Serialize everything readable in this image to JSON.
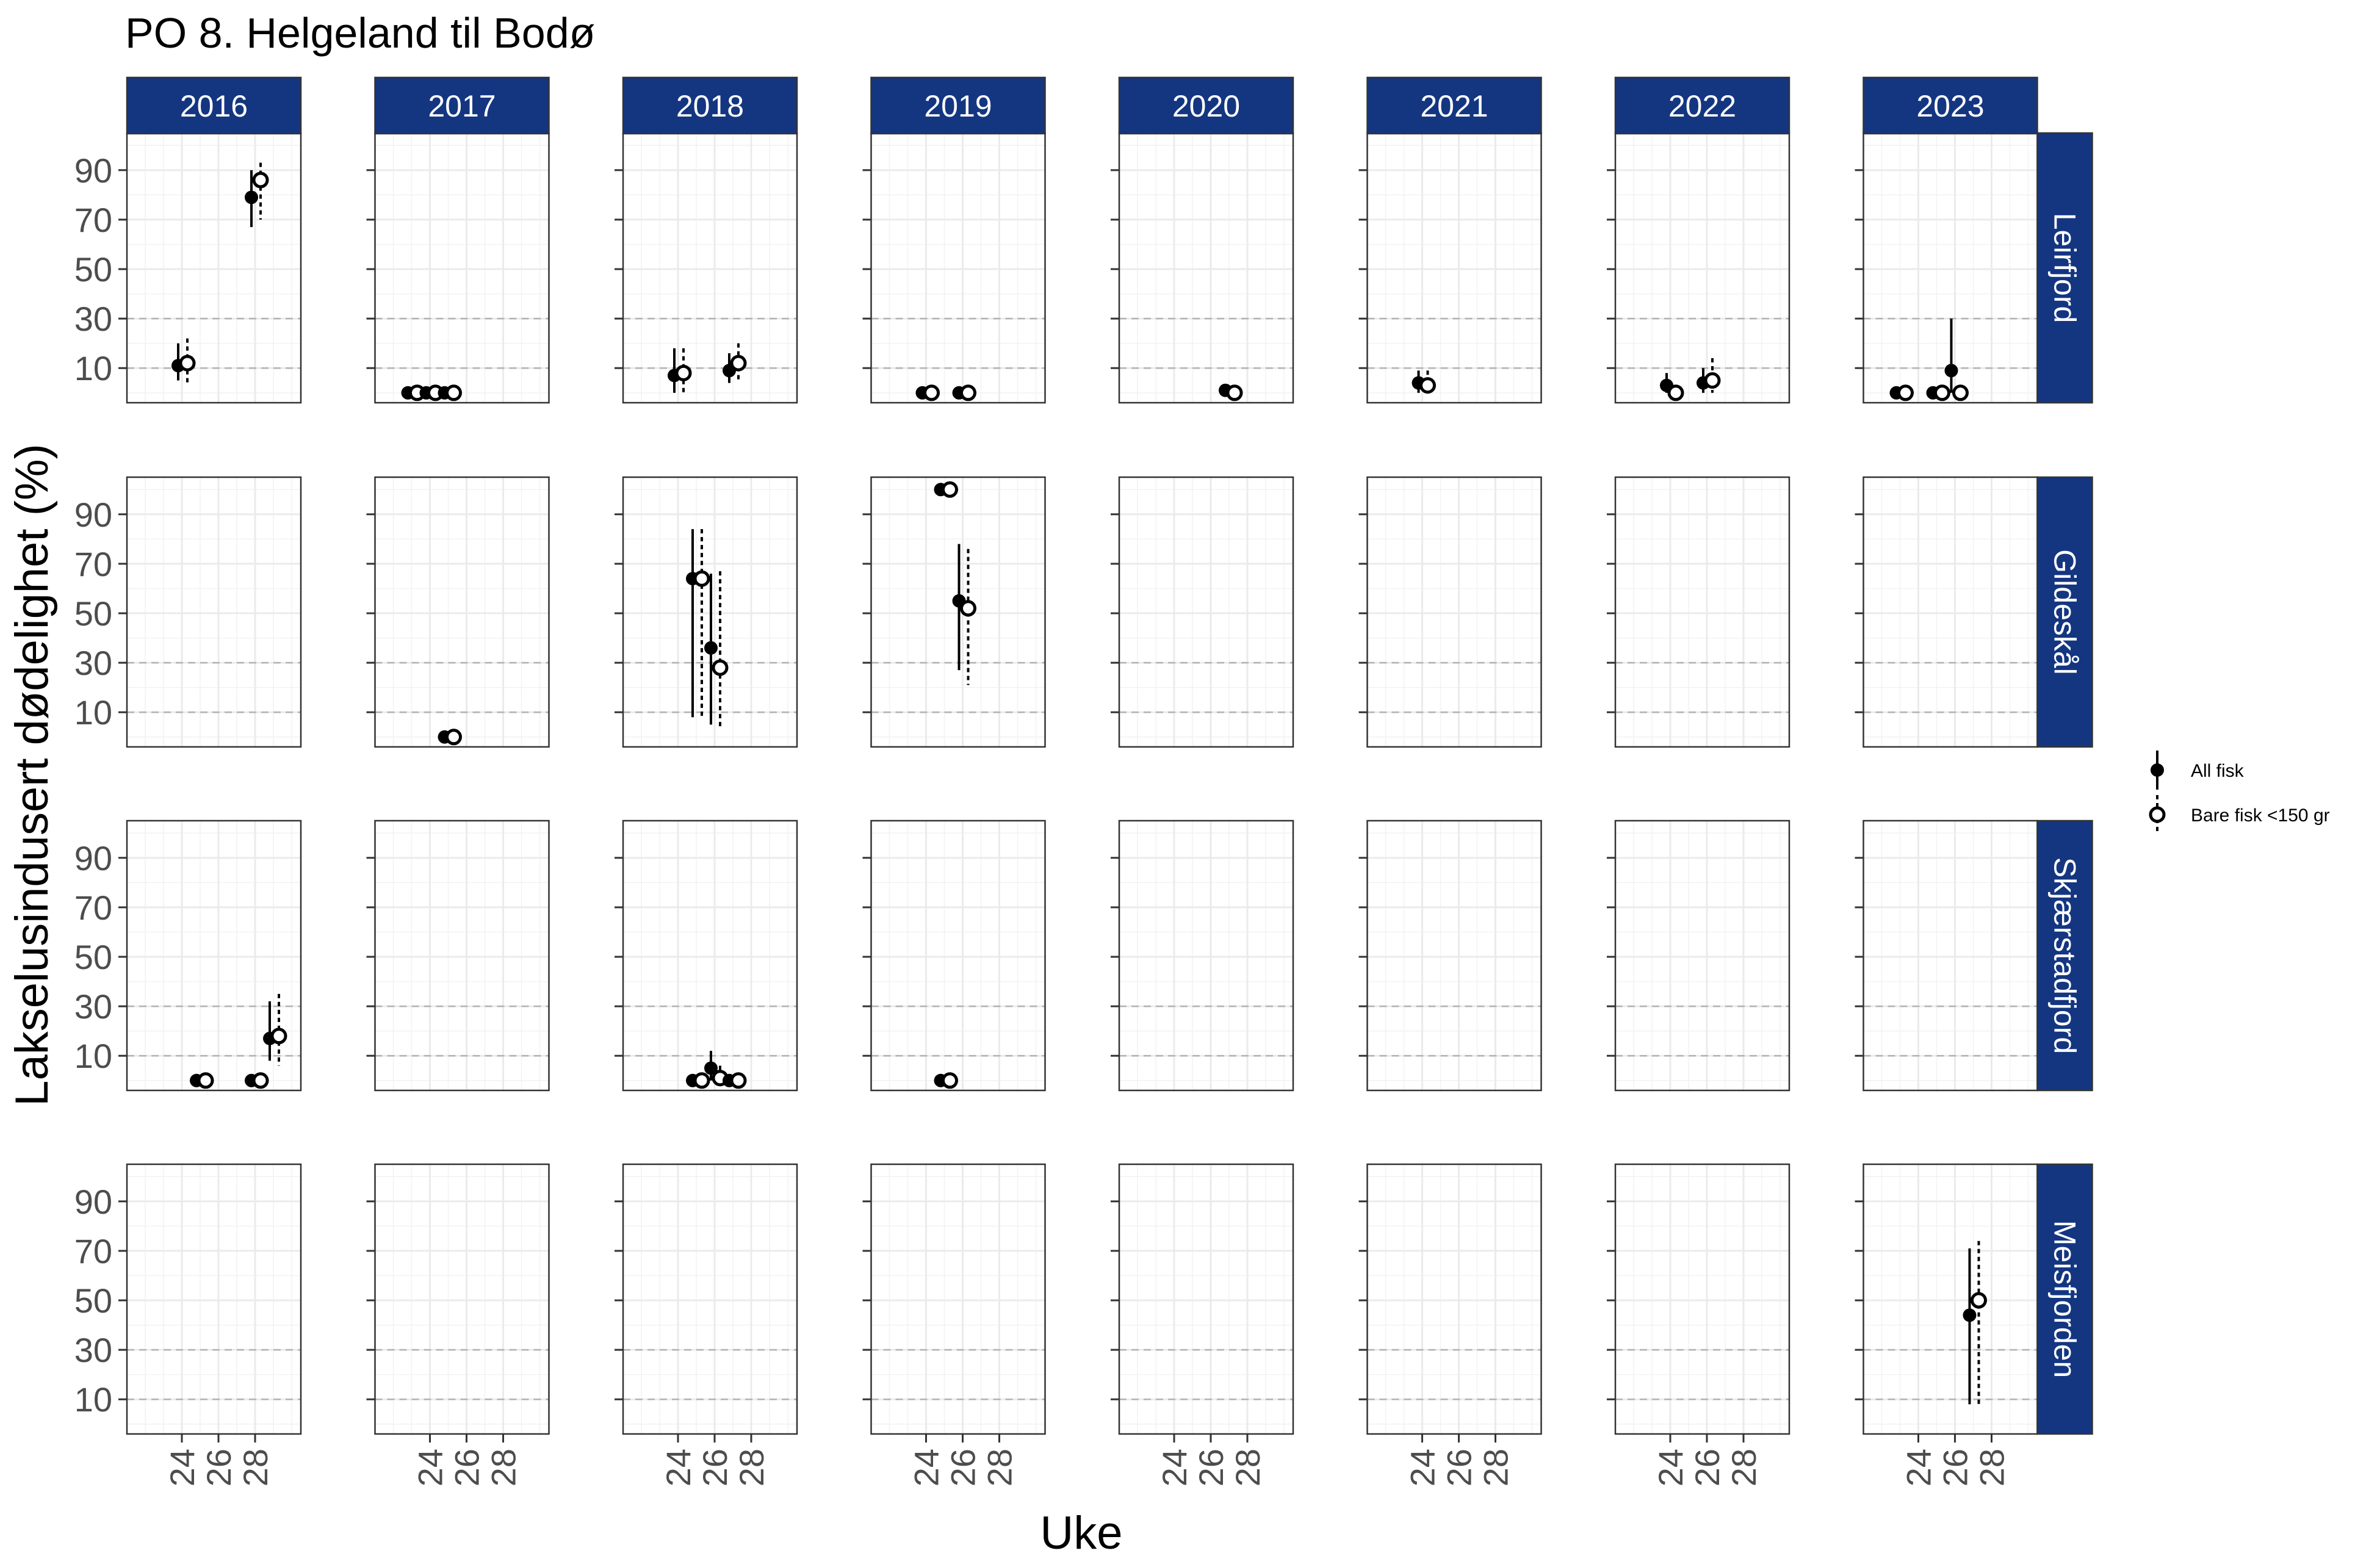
{
  "chart_data": {
    "type": "scatter",
    "title": "PO 8. Helgeland til Bodø",
    "xlabel": "Uke",
    "ylabel": "Lakselusindusert dødelighet (%)",
    "x_ticks": [
      "24",
      "26",
      "28"
    ],
    "y_ticks": [
      "10",
      "30",
      "50",
      "70",
      "90"
    ],
    "xlim": [
      21,
      30.5
    ],
    "ylim": [
      -4,
      105
    ],
    "reference_lines": [
      10,
      30
    ],
    "grid": true,
    "legend_position": "right",
    "colors": {
      "strip": "#143681",
      "strip_text": "#ffffff",
      "points": "#000000",
      "reference_line": "#b3b3b3"
    },
    "columns": [
      "2016",
      "2017",
      "2018",
      "2019",
      "2020",
      "2021",
      "2022",
      "2023"
    ],
    "rows": [
      "Leirfjord",
      "Gildeskål",
      "Skjærstadfjord",
      "Meisfjorden"
    ],
    "series": [
      {
        "name": "All fisk",
        "marker": "filled-circle",
        "errorbar": "solid"
      },
      {
        "name": "Bare fisk <150 gr",
        "marker": "open-circle",
        "errorbar": "dotted"
      }
    ],
    "points": [
      {
        "year": "2016",
        "loc": "Leirfjord",
        "series": "All fisk",
        "x": 23.8,
        "y": 11,
        "lo": 5,
        "hi": 20
      },
      {
        "year": "2016",
        "loc": "Leirfjord",
        "series": "Bare fisk <150 gr",
        "x": 24.3,
        "y": 12,
        "lo": 3,
        "hi": 22
      },
      {
        "year": "2016",
        "loc": "Leirfjord",
        "series": "All fisk",
        "x": 27.8,
        "y": 79,
        "lo": 67,
        "hi": 90
      },
      {
        "year": "2016",
        "loc": "Leirfjord",
        "series": "Bare fisk <150 gr",
        "x": 28.3,
        "y": 86,
        "lo": 70,
        "hi": 93
      },
      {
        "year": "2017",
        "loc": "Leirfjord",
        "series": "All fisk",
        "x": 22.8,
        "y": 0
      },
      {
        "year": "2017",
        "loc": "Leirfjord",
        "series": "Bare fisk <150 gr",
        "x": 23.3,
        "y": 0
      },
      {
        "year": "2017",
        "loc": "Leirfjord",
        "series": "All fisk",
        "x": 23.8,
        "y": 0
      },
      {
        "year": "2017",
        "loc": "Leirfjord",
        "series": "Bare fisk <150 gr",
        "x": 24.3,
        "y": 0
      },
      {
        "year": "2017",
        "loc": "Leirfjord",
        "series": "All fisk",
        "x": 24.8,
        "y": 0
      },
      {
        "year": "2017",
        "loc": "Leirfjord",
        "series": "Bare fisk <150 gr",
        "x": 25.3,
        "y": 0
      },
      {
        "year": "2018",
        "loc": "Leirfjord",
        "series": "All fisk",
        "x": 23.8,
        "y": 7,
        "lo": 0,
        "hi": 18
      },
      {
        "year": "2018",
        "loc": "Leirfjord",
        "series": "Bare fisk <150 gr",
        "x": 24.3,
        "y": 8,
        "lo": 0,
        "hi": 18
      },
      {
        "year": "2018",
        "loc": "Leirfjord",
        "series": "All fisk",
        "x": 26.8,
        "y": 9,
        "lo": 4,
        "hi": 16
      },
      {
        "year": "2018",
        "loc": "Leirfjord",
        "series": "Bare fisk <150 gr",
        "x": 27.3,
        "y": 12,
        "lo": 5,
        "hi": 20
      },
      {
        "year": "2019",
        "loc": "Leirfjord",
        "series": "All fisk",
        "x": 23.8,
        "y": 0
      },
      {
        "year": "2019",
        "loc": "Leirfjord",
        "series": "Bare fisk <150 gr",
        "x": 24.3,
        "y": 0
      },
      {
        "year": "2019",
        "loc": "Leirfjord",
        "series": "All fisk",
        "x": 25.8,
        "y": 0
      },
      {
        "year": "2019",
        "loc": "Leirfjord",
        "series": "Bare fisk <150 gr",
        "x": 26.3,
        "y": 0
      },
      {
        "year": "2020",
        "loc": "Leirfjord",
        "series": "All fisk",
        "x": 26.8,
        "y": 1
      },
      {
        "year": "2020",
        "loc": "Leirfjord",
        "series": "Bare fisk <150 gr",
        "x": 27.3,
        "y": 0
      },
      {
        "year": "2021",
        "loc": "Leirfjord",
        "series": "All fisk",
        "x": 23.8,
        "y": 4,
        "lo": 0,
        "hi": 9
      },
      {
        "year": "2021",
        "loc": "Leirfjord",
        "series": "Bare fisk <150 gr",
        "x": 24.3,
        "y": 3,
        "lo": 0,
        "hi": 9
      },
      {
        "year": "2022",
        "loc": "Leirfjord",
        "series": "All fisk",
        "x": 23.8,
        "y": 3,
        "lo": 0,
        "hi": 8
      },
      {
        "year": "2022",
        "loc": "Leirfjord",
        "series": "Bare fisk <150 gr",
        "x": 24.3,
        "y": 0
      },
      {
        "year": "2022",
        "loc": "Leirfjord",
        "series": "All fisk",
        "x": 25.8,
        "y": 4,
        "lo": 0,
        "hi": 10
      },
      {
        "year": "2022",
        "loc": "Leirfjord",
        "series": "Bare fisk <150 gr",
        "x": 26.3,
        "y": 5,
        "lo": 0,
        "hi": 14
      },
      {
        "year": "2023",
        "loc": "Leirfjord",
        "series": "All fisk",
        "x": 22.8,
        "y": 0
      },
      {
        "year": "2023",
        "loc": "Leirfjord",
        "series": "Bare fisk <150 gr",
        "x": 23.3,
        "y": 0
      },
      {
        "year": "2023",
        "loc": "Leirfjord",
        "series": "All fisk",
        "x": 24.8,
        "y": 0
      },
      {
        "year": "2023",
        "loc": "Leirfjord",
        "series": "Bare fisk <150 gr",
        "x": 25.3,
        "y": 0
      },
      {
        "year": "2023",
        "loc": "Leirfjord",
        "series": "All fisk",
        "x": 25.8,
        "y": 9,
        "lo": 0,
        "hi": 30
      },
      {
        "year": "2023",
        "loc": "Leirfjord",
        "series": "Bare fisk <150 gr",
        "x": 26.3,
        "y": 0
      },
      {
        "year": "2017",
        "loc": "Gildeskål",
        "series": "All fisk",
        "x": 24.8,
        "y": 0
      },
      {
        "year": "2017",
        "loc": "Gildeskål",
        "series": "Bare fisk <150 gr",
        "x": 25.3,
        "y": 0
      },
      {
        "year": "2018",
        "loc": "Gildeskål",
        "series": "All fisk",
        "x": 24.8,
        "y": 64,
        "lo": 8,
        "hi": 84
      },
      {
        "year": "2018",
        "loc": "Gildeskål",
        "series": "Bare fisk <150 gr",
        "x": 25.3,
        "y": 64,
        "lo": 8,
        "hi": 84
      },
      {
        "year": "2018",
        "loc": "Gildeskål",
        "series": "All fisk",
        "x": 25.8,
        "y": 36,
        "lo": 5,
        "hi": 66
      },
      {
        "year": "2018",
        "loc": "Gildeskål",
        "series": "Bare fisk <150 gr",
        "x": 26.3,
        "y": 28,
        "lo": 3,
        "hi": 67
      },
      {
        "year": "2019",
        "loc": "Gildeskål",
        "series": "All fisk",
        "x": 24.8,
        "y": 100
      },
      {
        "year": "2019",
        "loc": "Gildeskål",
        "series": "Bare fisk <150 gr",
        "x": 25.3,
        "y": 100
      },
      {
        "year": "2019",
        "loc": "Gildeskål",
        "series": "All fisk",
        "x": 25.8,
        "y": 55,
        "lo": 27,
        "hi": 78
      },
      {
        "year": "2019",
        "loc": "Gildeskål",
        "series": "Bare fisk <150 gr",
        "x": 26.3,
        "y": 52,
        "lo": 21,
        "hi": 76
      },
      {
        "year": "2016",
        "loc": "Skjærstadfjord",
        "series": "All fisk",
        "x": 24.8,
        "y": 0
      },
      {
        "year": "2016",
        "loc": "Skjærstadfjord",
        "series": "Bare fisk <150 gr",
        "x": 25.3,
        "y": 0
      },
      {
        "year": "2016",
        "loc": "Skjærstadfjord",
        "series": "All fisk",
        "x": 27.8,
        "y": 0
      },
      {
        "year": "2016",
        "loc": "Skjærstadfjord",
        "series": "Bare fisk <150 gr",
        "x": 28.3,
        "y": 0
      },
      {
        "year": "2016",
        "loc": "Skjærstadfjord",
        "series": "All fisk",
        "x": 28.8,
        "y": 17,
        "lo": 8,
        "hi": 32
      },
      {
        "year": "2016",
        "loc": "Skjærstadfjord",
        "series": "Bare fisk <150 gr",
        "x": 29.3,
        "y": 18,
        "lo": 6,
        "hi": 35
      },
      {
        "year": "2018",
        "loc": "Skjærstadfjord",
        "series": "All fisk",
        "x": 24.8,
        "y": 0
      },
      {
        "year": "2018",
        "loc": "Skjærstadfjord",
        "series": "Bare fisk <150 gr",
        "x": 25.3,
        "y": 0
      },
      {
        "year": "2018",
        "loc": "Skjærstadfjord",
        "series": "All fisk",
        "x": 25.8,
        "y": 5,
        "lo": 0,
        "hi": 12
      },
      {
        "year": "2018",
        "loc": "Skjærstadfjord",
        "series": "Bare fisk <150 gr",
        "x": 26.3,
        "y": 1,
        "lo": 0,
        "hi": 6
      },
      {
        "year": "2018",
        "loc": "Skjærstadfjord",
        "series": "All fisk",
        "x": 26.8,
        "y": 0
      },
      {
        "year": "2018",
        "loc": "Skjærstadfjord",
        "series": "Bare fisk <150 gr",
        "x": 27.3,
        "y": 0
      },
      {
        "year": "2019",
        "loc": "Skjærstadfjord",
        "series": "All fisk",
        "x": 24.8,
        "y": 0
      },
      {
        "year": "2019",
        "loc": "Skjærstadfjord",
        "series": "Bare fisk <150 gr",
        "x": 25.3,
        "y": 0
      },
      {
        "year": "2023",
        "loc": "Meisfjorden",
        "series": "All fisk",
        "x": 26.8,
        "y": 44,
        "lo": 8,
        "hi": 71
      },
      {
        "year": "2023",
        "loc": "Meisfjorden",
        "series": "Bare fisk <150 gr",
        "x": 27.3,
        "y": 50,
        "lo": 8,
        "hi": 74
      }
    ]
  }
}
